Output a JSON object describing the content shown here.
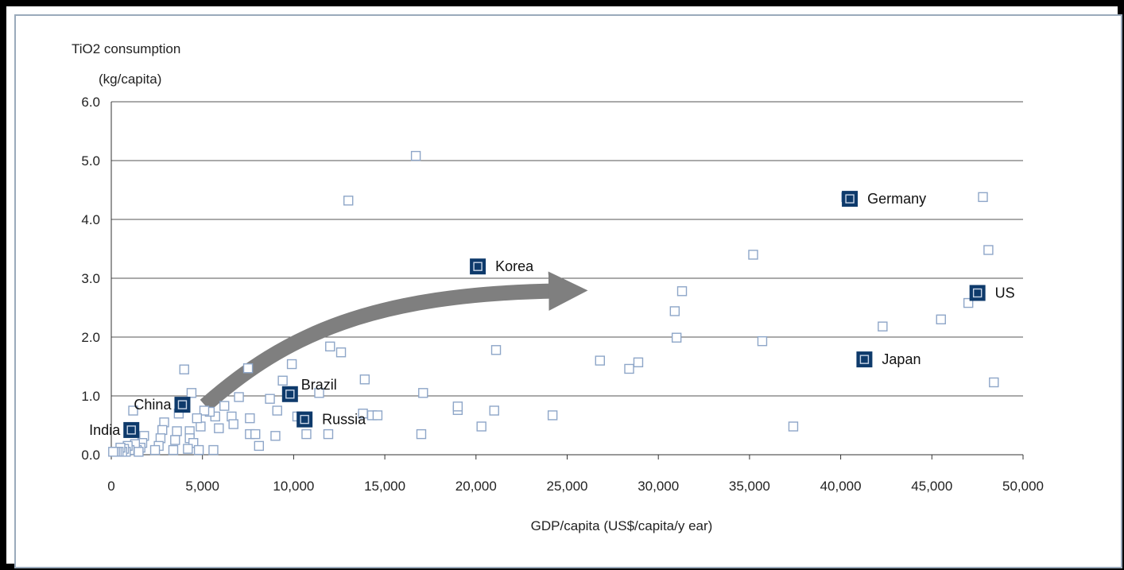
{
  "chart_data": {
    "type": "scatter",
    "title": "",
    "ylabel_line1": "TiO2 consumption",
    "ylabel_line2": "(kg/capita)",
    "xlabel": "GDP/capita (US$/capita/y ear)",
    "xlim": [
      0,
      50000
    ],
    "ylim": [
      0,
      6
    ],
    "x_ticks": [
      0,
      5000,
      10000,
      15000,
      20000,
      25000,
      30000,
      35000,
      40000,
      45000,
      50000
    ],
    "x_tick_labels": [
      "0",
      "5,000",
      "10,000",
      "15,000",
      "20,000",
      "25,000",
      "30,000",
      "35,000",
      "40,000",
      "45,000",
      "50,000"
    ],
    "y_ticks": [
      0,
      1,
      2,
      3,
      4,
      5,
      6
    ],
    "y_tick_labels": [
      "0.0",
      "1.0",
      "2.0",
      "3.0",
      "4.0",
      "5.0",
      "6.0"
    ],
    "grid": "horizontal",
    "colors": {
      "highlight_fill": "#0e3a6b",
      "marker_stroke": "#8ea6c8",
      "grid": "#555555",
      "arrow": "#7f7f7f"
    },
    "highlighted": [
      {
        "label": "Germany",
        "x": 40500,
        "y": 4.35,
        "label_side": "right"
      },
      {
        "label": "Korea",
        "x": 20100,
        "y": 3.2,
        "label_side": "right"
      },
      {
        "label": "US",
        "x": 47500,
        "y": 2.75,
        "label_side": "right"
      },
      {
        "label": "Japan",
        "x": 41300,
        "y": 1.62,
        "label_side": "right"
      },
      {
        "label": "Brazil",
        "x": 9800,
        "y": 1.03,
        "label_side": "right-up"
      },
      {
        "label": "Russia",
        "x": 10600,
        "y": 0.6,
        "label_side": "right"
      },
      {
        "label": "China",
        "x": 3900,
        "y": 0.85,
        "label_side": "left"
      },
      {
        "label": "India",
        "x": 1100,
        "y": 0.42,
        "label_side": "left"
      }
    ],
    "others": [
      [
        16700,
        5.08
      ],
      [
        13000,
        4.32
      ],
      [
        40300,
        4.38
      ],
      [
        47800,
        4.38
      ],
      [
        48100,
        3.48
      ],
      [
        35200,
        3.4
      ],
      [
        31300,
        2.78
      ],
      [
        30900,
        2.44
      ],
      [
        47000,
        2.58
      ],
      [
        45500,
        2.3
      ],
      [
        42300,
        2.18
      ],
      [
        31000,
        1.99
      ],
      [
        35700,
        1.93
      ],
      [
        21100,
        1.78
      ],
      [
        12000,
        1.84
      ],
      [
        12600,
        1.74
      ],
      [
        26800,
        1.6
      ],
      [
        28400,
        1.46
      ],
      [
        28900,
        1.57
      ],
      [
        48400,
        1.23
      ],
      [
        37400,
        0.48
      ],
      [
        24200,
        0.67
      ],
      [
        21000,
        0.75
      ],
      [
        20300,
        0.48
      ],
      [
        19000,
        0.76
      ],
      [
        19000,
        0.82
      ],
      [
        17100,
        1.05
      ],
      [
        17000,
        0.35
      ],
      [
        13900,
        1.28
      ],
      [
        13800,
        0.7
      ],
      [
        14300,
        0.67
      ],
      [
        14600,
        0.67
      ],
      [
        11400,
        1.05
      ],
      [
        10200,
        0.65
      ],
      [
        10700,
        0.35
      ],
      [
        11900,
        0.35
      ],
      [
        9900,
        1.54
      ],
      [
        9400,
        1.26
      ],
      [
        9100,
        0.75
      ],
      [
        8700,
        0.95
      ],
      [
        9000,
        0.32
      ],
      [
        7500,
        1.47
      ],
      [
        7600,
        0.62
      ],
      [
        7600,
        0.35
      ],
      [
        7900,
        0.35
      ],
      [
        8100,
        0.15
      ],
      [
        7000,
        0.98
      ],
      [
        6600,
        0.65
      ],
      [
        6700,
        0.52
      ],
      [
        6200,
        0.83
      ],
      [
        5900,
        0.45
      ],
      [
        5700,
        0.65
      ],
      [
        5600,
        0.08
      ],
      [
        5400,
        0.73
      ],
      [
        5100,
        0.75
      ],
      [
        4900,
        0.48
      ],
      [
        4700,
        0.62
      ],
      [
        4400,
        1.05
      ],
      [
        4300,
        0.4
      ],
      [
        4300,
        0.28
      ],
      [
        4500,
        0.2
      ],
      [
        4200,
        0.1
      ],
      [
        4800,
        0.08
      ],
      [
        4000,
        1.45
      ],
      [
        3700,
        0.7
      ],
      [
        3600,
        0.4
      ],
      [
        3500,
        0.25
      ],
      [
        3400,
        0.08
      ],
      [
        2900,
        0.55
      ],
      [
        2800,
        0.42
      ],
      [
        2700,
        0.28
      ],
      [
        2600,
        0.15
      ],
      [
        2400,
        0.08
      ],
      [
        1800,
        0.32
      ],
      [
        1700,
        0.2
      ],
      [
        1600,
        0.12
      ],
      [
        1400,
        0.08
      ],
      [
        1300,
        0.18
      ],
      [
        1200,
        0.75
      ],
      [
        1000,
        0.08
      ],
      [
        900,
        0.15
      ],
      [
        800,
        0.05
      ],
      [
        700,
        0.1
      ],
      [
        600,
        0.05
      ],
      [
        500,
        0.12
      ],
      [
        400,
        0.05
      ],
      [
        300,
        0.05
      ],
      [
        200,
        0.05
      ],
      [
        100,
        0.05
      ],
      [
        1500,
        0.05
      ]
    ]
  }
}
